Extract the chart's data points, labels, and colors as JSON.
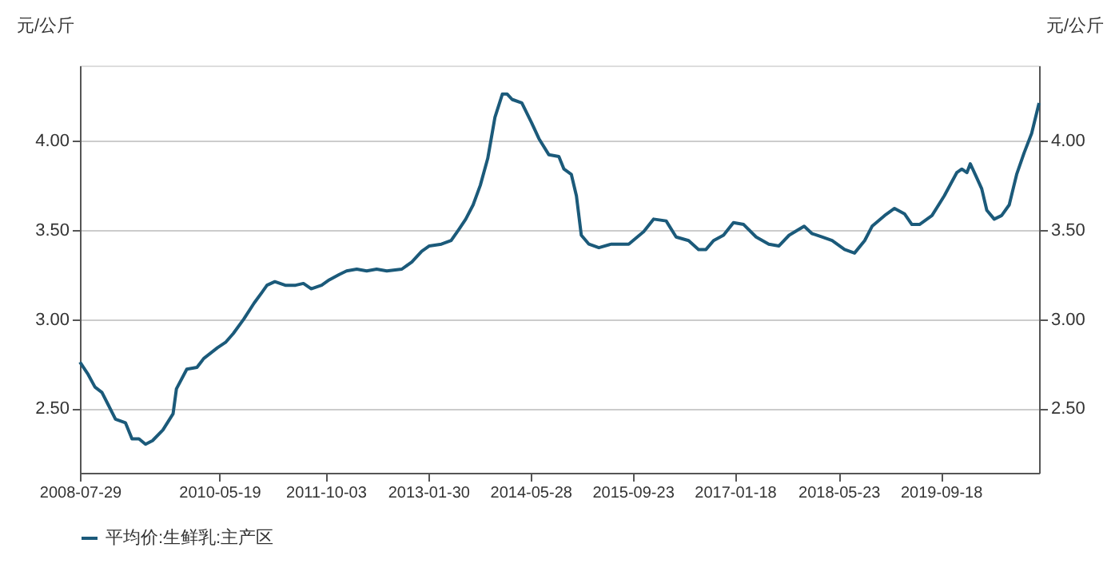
{
  "chart_data": {
    "type": "line",
    "ylabel": "元/公斤",
    "y2label": "元/公斤",
    "x": [
      "2008-07-29",
      "2008-09-06",
      "2008-10-08",
      "2008-11-10",
      "2008-12-10",
      "2009-01-13",
      "2009-03-01",
      "2009-04-01",
      "2009-05-04",
      "2009-06-04",
      "2009-07-07",
      "2009-08-25",
      "2009-10-12",
      "2009-10-28",
      "2009-12-16",
      "2010-02-02",
      "2010-03-06",
      "2010-05-10",
      "2010-06-17",
      "2010-07-24",
      "2010-09-11",
      "2010-10-30",
      "2010-12-06",
      "2010-12-30",
      "2011-02-05",
      "2011-03-26",
      "2011-05-14",
      "2011-06-20",
      "2011-07-27",
      "2011-09-14",
      "2011-10-20",
      "2011-12-06",
      "2012-01-10",
      "2012-02-27",
      "2012-04-14",
      "2012-05-31",
      "2012-07-18",
      "2012-09-27",
      "2012-11-13",
      "2012-12-30",
      "2013-02-04",
      "2013-04-02",
      "2013-05-18",
      "2013-06-22",
      "2013-07-26",
      "2013-08-30",
      "2013-10-03",
      "2013-11-07",
      "2013-12-11",
      "2014-01-15",
      "2014-02-07",
      "2014-03-02",
      "2014-04-17",
      "2014-06-02",
      "2014-07-07",
      "2014-08-23",
      "2014-10-09",
      "2014-11-02",
      "2014-12-07",
      "2014-12-31",
      "2015-01-23",
      "2015-02-28",
      "2015-04-16",
      "2015-06-14",
      "2015-09-04",
      "2015-11-14",
      "2015-12-31",
      "2016-02-28",
      "2016-04-15",
      "2016-06-13",
      "2016-07-30",
      "2016-09-03",
      "2016-10-09",
      "2016-11-25",
      "2017-01-11",
      "2017-02-28",
      "2017-04-28",
      "2017-06-27",
      "2017-08-14",
      "2017-10-01",
      "2017-12-11",
      "2018-01-16",
      "2018-03-05",
      "2018-04-22",
      "2018-06-20",
      "2018-08-06",
      "2018-09-23",
      "2018-10-28",
      "2018-12-26",
      "2019-02-11",
      "2019-03-30",
      "2019-05-04",
      "2019-06-09",
      "2019-08-07",
      "2019-10-04",
      "2019-12-02",
      "2019-12-26",
      "2020-01-19",
      "2020-02-04",
      "2020-03-06",
      "2020-03-29",
      "2020-04-22",
      "2020-05-27",
      "2020-07-01",
      "2020-08-06",
      "2020-09-10",
      "2020-10-15",
      "2020-11-20",
      "2020-12-25"
    ],
    "series": [
      {
        "name": "平均价:生鲜乳:主产区",
        "color": "#1b5a7a",
        "values": [
          2.76,
          2.69,
          2.62,
          2.59,
          2.52,
          2.44,
          2.42,
          2.33,
          2.33,
          2.3,
          2.32,
          2.38,
          2.47,
          2.61,
          2.72,
          2.73,
          2.78,
          2.84,
          2.87,
          2.92,
          3.0,
          3.09,
          3.15,
          3.19,
          3.21,
          3.19,
          3.19,
          3.2,
          3.17,
          3.19,
          3.22,
          3.25,
          3.27,
          3.28,
          3.27,
          3.28,
          3.27,
          3.28,
          3.32,
          3.38,
          3.41,
          3.42,
          3.44,
          3.5,
          3.56,
          3.64,
          3.75,
          3.9,
          4.13,
          4.26,
          4.26,
          4.23,
          4.21,
          4.1,
          4.01,
          3.92,
          3.91,
          3.84,
          3.81,
          3.69,
          3.47,
          3.42,
          3.4,
          3.42,
          3.42,
          3.49,
          3.56,
          3.55,
          3.46,
          3.44,
          3.39,
          3.39,
          3.44,
          3.47,
          3.54,
          3.53,
          3.46,
          3.42,
          3.41,
          3.47,
          3.52,
          3.48,
          3.46,
          3.44,
          3.39,
          3.37,
          3.44,
          3.52,
          3.58,
          3.62,
          3.59,
          3.53,
          3.53,
          3.58,
          3.69,
          3.82,
          3.84,
          3.82,
          3.87,
          3.79,
          3.73,
          3.61,
          3.56,
          3.58,
          3.64,
          3.81,
          3.93,
          4.04,
          4.21
        ]
      }
    ],
    "xlim": [
      "2008-07-29",
      "2020-12-25"
    ],
    "xticks": [
      "2008-07-29",
      "2010-05-19",
      "2011-10-03",
      "2013-01-30",
      "2014-05-28",
      "2015-09-23",
      "2017-01-18",
      "2018-05-23",
      "2019-09-18"
    ],
    "ylim": [
      2.14,
      4.42
    ],
    "yticks": [
      {
        "value": 2.5,
        "label": "2.50"
      },
      {
        "value": 3.0,
        "label": "3.00"
      },
      {
        "value": 3.5,
        "label": "3.50"
      },
      {
        "value": 4.0,
        "label": "4.00"
      }
    ],
    "y2lim": [
      2.14,
      4.42
    ],
    "y2ticks": [
      {
        "value": 2.5,
        "label": "2.50"
      },
      {
        "value": 3.0,
        "label": "3.00"
      },
      {
        "value": 3.5,
        "label": "3.50"
      },
      {
        "value": 4.0,
        "label": "4.00"
      }
    ],
    "grid": "y",
    "legend": "bottom",
    "marker": "none",
    "line_style": "solid"
  }
}
